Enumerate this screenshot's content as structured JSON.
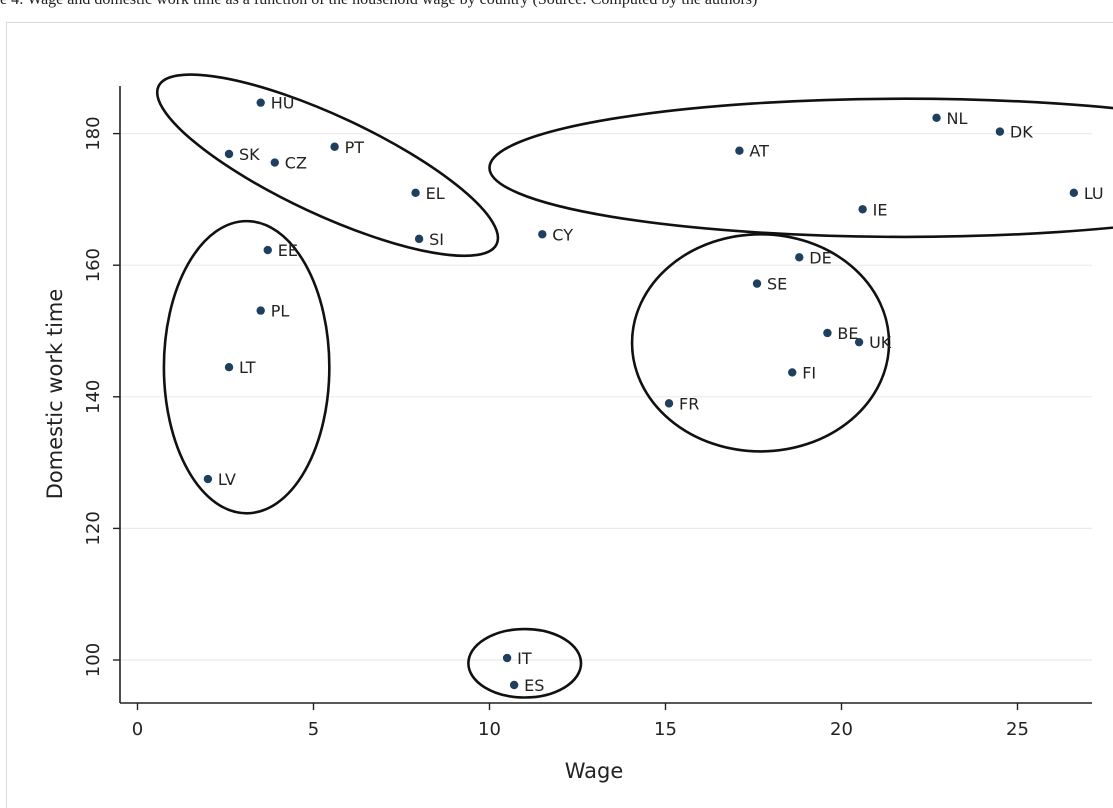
{
  "caption": "e 4: Wage and domestic work time as a function of the household wage by country (Source: Computed by the authors)",
  "chart_data": {
    "type": "scatter",
    "xlabel": "Wage",
    "ylabel": "Domestic work time",
    "xlim": [
      -0.5,
      27.5
    ],
    "ylim": [
      93,
      188
    ],
    "xticks": [
      0,
      5,
      10,
      15,
      20,
      25
    ],
    "yticks": [
      100,
      120,
      140,
      160,
      180
    ],
    "grid": "horizontal",
    "marker_color": "#1f3f5f",
    "points": [
      {
        "label": "HU",
        "x": 3.5,
        "y": 184.7
      },
      {
        "label": "SK",
        "x": 2.6,
        "y": 176.9
      },
      {
        "label": "CZ",
        "x": 3.9,
        "y": 175.6
      },
      {
        "label": "PT",
        "x": 5.6,
        "y": 178.0
      },
      {
        "label": "EL",
        "x": 7.9,
        "y": 171.0
      },
      {
        "label": "SI",
        "x": 8.0,
        "y": 164.0
      },
      {
        "label": "CY",
        "x": 11.5,
        "y": 164.7
      },
      {
        "label": "EE",
        "x": 3.7,
        "y": 162.3
      },
      {
        "label": "PL",
        "x": 3.5,
        "y": 153.1
      },
      {
        "label": "LT",
        "x": 2.6,
        "y": 144.5
      },
      {
        "label": "LV",
        "x": 2.0,
        "y": 127.5
      },
      {
        "label": "AT",
        "x": 17.1,
        "y": 177.4
      },
      {
        "label": "NL",
        "x": 22.7,
        "y": 182.4
      },
      {
        "label": "DK",
        "x": 24.5,
        "y": 180.3
      },
      {
        "label": "LU",
        "x": 26.6,
        "y": 171.0
      },
      {
        "label": "IE",
        "x": 20.6,
        "y": 168.5
      },
      {
        "label": "DE",
        "x": 18.8,
        "y": 161.2
      },
      {
        "label": "SE",
        "x": 17.6,
        "y": 157.2
      },
      {
        "label": "BE",
        "x": 19.6,
        "y": 149.7
      },
      {
        "label": "UK",
        "x": 20.5,
        "y": 148.3
      },
      {
        "label": "FI",
        "x": 18.6,
        "y": 143.7
      },
      {
        "label": "FR",
        "x": 15.1,
        "y": 139.0
      },
      {
        "label": "IT",
        "x": 10.5,
        "y": 100.3
      },
      {
        "label": "ES",
        "x": 10.7,
        "y": 96.2
      }
    ],
    "clusters": [
      {
        "cx": 5.4,
        "cy": 175.2,
        "rx": 5.3,
        "ry": 7.5,
        "rotate": 25
      },
      {
        "cx": 3.1,
        "cy": 144.5,
        "rx": 2.35,
        "ry": 22.2,
        "rotate": 0
      },
      {
        "cx": 21.8,
        "cy": 174.8,
        "rx": 11.8,
        "ry": 10.5,
        "rotate": 0
      },
      {
        "cx": 17.7,
        "cy": 148.2,
        "rx": 3.65,
        "ry": 16.5,
        "rotate": 0
      },
      {
        "cx": 11.0,
        "cy": 99.5,
        "rx": 1.6,
        "ry": 5.2,
        "rotate": 0
      }
    ]
  }
}
